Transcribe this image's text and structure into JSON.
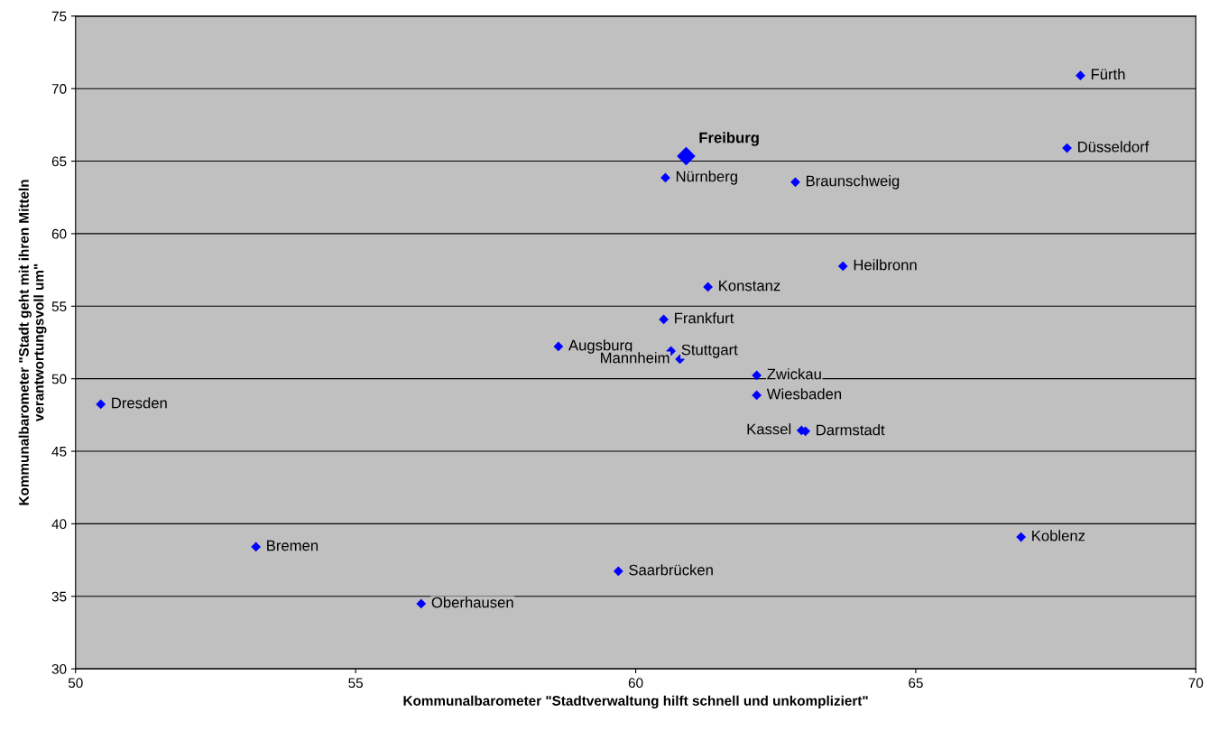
{
  "chart_data": {
    "type": "scatter",
    "xlabel": "Kommunalbarometer \"Stadtverwaltung hilft schnell und unkompliziert\"",
    "ylabel": "Kommunalbarometer \"Stadt geht mit ihren Mitteln\nverantwortungsvoll um\"",
    "xlim": [
      50,
      70
    ],
    "xticks": [
      50,
      55,
      60,
      65,
      70
    ],
    "ylim": [
      30,
      75
    ],
    "yticks": [
      30,
      35,
      40,
      45,
      50,
      55,
      60,
      65,
      70,
      75
    ],
    "grid": "y",
    "marker": "diamond",
    "legend": false,
    "series": [
      {
        "color": "#0000ff",
        "x": [
          67.94,
          67.7,
          60.53,
          62.85,
          63.7,
          61.29,
          60.5,
          58.62,
          60.63,
          60.79,
          62.16,
          62.16,
          50.45,
          63.03,
          62.96,
          66.88,
          53.22,
          59.69,
          56.17
        ],
        "values": [
          70.9,
          65.9,
          63.86,
          63.55,
          57.76,
          56.33,
          54.09,
          52.22,
          51.91,
          51.35,
          50.23,
          48.86,
          48.24,
          46.38,
          46.44,
          39.09,
          38.41,
          36.73,
          34.49
        ]
      },
      {
        "name": "Freiburg",
        "color": "#0000ff",
        "x": [
          60.9
        ],
        "values": [
          65.35
        ]
      }
    ],
    "annotations": [
      {
        "text": "Fürth",
        "x": 67.94,
        "y": 70.9
      },
      {
        "text": "Düsseldorf",
        "x": 67.7,
        "y": 65.9
      },
      {
        "text": "Nürnberg",
        "x": 60.53,
        "y": 63.86
      },
      {
        "text": "Braunschweig",
        "x": 62.85,
        "y": 63.55
      },
      {
        "text": "Heilbronn",
        "x": 63.7,
        "y": 57.76
      },
      {
        "text": "Konstanz",
        "x": 61.29,
        "y": 56.33
      },
      {
        "text": "Frankfurt",
        "x": 60.5,
        "y": 54.09
      },
      {
        "text": "Augsburg",
        "x": 58.62,
        "y": 52.22
      },
      {
        "text": "Stuttgart",
        "x": 60.63,
        "y": 51.91
      },
      {
        "text": "Mannheim",
        "x": 60.79,
        "y": 51.35
      },
      {
        "text": "Zwickau",
        "x": 62.16,
        "y": 50.23
      },
      {
        "text": "Wiesbaden",
        "x": 62.16,
        "y": 48.86
      },
      {
        "text": "Dresden",
        "x": 50.45,
        "y": 48.24
      },
      {
        "text": "Darmstadt",
        "x": 63.03,
        "y": 46.38
      },
      {
        "text": "Kassel",
        "x": 62.96,
        "y": 46.44
      },
      {
        "text": "Koblenz",
        "x": 66.88,
        "y": 39.09
      },
      {
        "text": "Bremen",
        "x": 53.22,
        "y": 38.41
      },
      {
        "text": "Saarbrücken",
        "x": 59.69,
        "y": 36.73
      },
      {
        "text": "Oberhausen",
        "x": 56.17,
        "y": 34.49
      }
    ]
  }
}
